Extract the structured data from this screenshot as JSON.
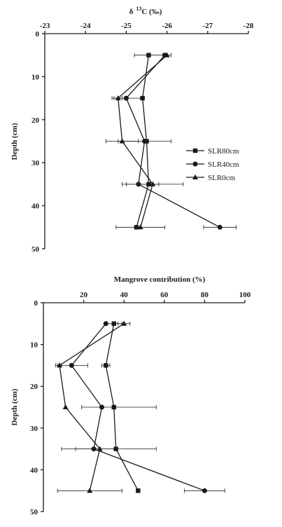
{
  "chart_data": [
    {
      "type": "scatter",
      "title": "",
      "xlabel_main": "δ",
      "xlabel_sup": "13",
      "xlabel_rest": "C (‰)",
      "ylabel": "Depth (cm)",
      "xlim": [
        -23,
        -28
      ],
      "ylim": [
        0,
        50
      ],
      "x_ticks": [
        "-23",
        "-24",
        "-25",
        "-26",
        "-27",
        "-28"
      ],
      "y_ticks": [
        "0",
        "10",
        "20",
        "30",
        "40",
        "50"
      ],
      "legend_position": "right",
      "series": [
        {
          "name": "SLR80cm",
          "marker": "square",
          "points": [
            {
              "x": -25.55,
              "y": 5,
              "err": 0.35
            },
            {
              "x": -25.4,
              "y": 15,
              "err": 0
            },
            {
              "x": -25.5,
              "y": 25,
              "err": 0.0
            },
            {
              "x": -25.55,
              "y": 35,
              "err": 0.25
            },
            {
              "x": -25.25,
              "y": 45,
              "err": 0
            }
          ]
        },
        {
          "name": "SLR40cm",
          "marker": "circle",
          "points": [
            {
              "x": -25.95,
              "y": 5,
              "err": 0
            },
            {
              "x": -25.0,
              "y": 15,
              "err": 0.35
            },
            {
              "x": -25.45,
              "y": 25,
              "err": 0.65
            },
            {
              "x": -25.3,
              "y": 35,
              "err": 0.3
            },
            {
              "x": -27.3,
              "y": 45,
              "err": 0.4
            }
          ]
        },
        {
          "name": "SLR0cm",
          "marker": "triangle",
          "points": [
            {
              "x": -26.0,
              "y": 5,
              "err": 0.1
            },
            {
              "x": -24.8,
              "y": 15,
              "err": 0.1
            },
            {
              "x": -24.9,
              "y": 25,
              "err": 0.4
            },
            {
              "x": -25.65,
              "y": 35,
              "err": 0.75
            },
            {
              "x": -25.35,
              "y": 45,
              "err": 0.6
            }
          ]
        }
      ]
    },
    {
      "type": "scatter",
      "title": "",
      "xlabel": "Mangrove contribution (%)",
      "ylabel": "Depth (cm)",
      "xlim": [
        0,
        100
      ],
      "ylim": [
        0,
        50
      ],
      "x_ticks": [
        "20",
        "40",
        "60",
        "80",
        "100"
      ],
      "y_ticks": [
        "0",
        "10",
        "20",
        "30",
        "40",
        "50"
      ],
      "series": [
        {
          "name": "SLR80cm",
          "marker": "square",
          "points": [
            {
              "x": 35,
              "y": 5,
              "err": 4
            },
            {
              "x": 31,
              "y": 15,
              "err": 2
            },
            {
              "x": 35,
              "y": 25,
              "err": 0
            },
            {
              "x": 36,
              "y": 35,
              "err": 0
            },
            {
              "x": 47,
              "y": 45,
              "err": 0
            }
          ]
        },
        {
          "name": "SLR40cm",
          "marker": "circle",
          "points": [
            {
              "x": 31,
              "y": 5,
              "err": 0
            },
            {
              "x": 14,
              "y": 15,
              "err": 8
            },
            {
              "x": 29,
              "y": 25,
              "err": 0
            },
            {
              "x": 25,
              "y": 35,
              "err": 0
            },
            {
              "x": 80,
              "y": 45,
              "err": 10
            }
          ]
        },
        {
          "name": "SLR0cm",
          "marker": "triangle",
          "points": [
            {
              "x": 40,
              "y": 5,
              "err": 3
            },
            {
              "x": 8,
              "y": 15,
              "err": 1
            },
            {
              "x": 11,
              "y": 25,
              "err": 0
            },
            {
              "x": 28,
              "y": 35,
              "err": 0
            },
            {
              "x": 23,
              "y": 45,
              "err": 0
            }
          ]
        }
      ],
      "extra_errors": [
        {
          "y": 25,
          "x1": 19,
          "x2": 56
        },
        {
          "y": 35,
          "x1": 9,
          "x2": 56
        },
        {
          "y": 35,
          "x1": 16,
          "x2": 36
        },
        {
          "y": 45,
          "x1": 7,
          "x2": 39
        }
      ]
    }
  ]
}
